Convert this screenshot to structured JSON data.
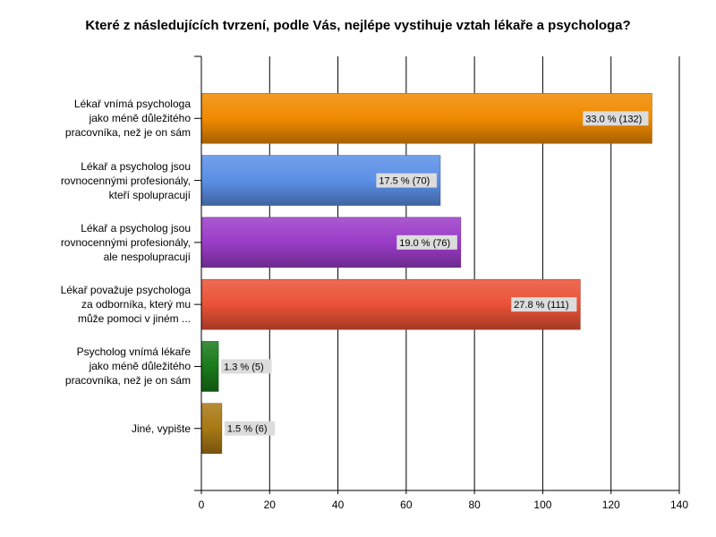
{
  "chart_data": {
    "type": "bar",
    "orientation": "horizontal",
    "title": "Které z následujících tvrzení, podle Vás, nejlépe vystihuje vztah lékaře a psychologa?",
    "categories": [
      [
        "Lékař vnímá psychologa",
        "jako méně důležitého",
        "pracovníka, než je on sám"
      ],
      [
        "Lékař a psycholog jsou",
        "rovnocennými profesionály,",
        "kteří spolupracují"
      ],
      [
        "Lékař a psycholog jsou",
        "rovnocennými profesionály,",
        "ale nespolupracují"
      ],
      [
        "Lékař považuje psychologa",
        "za odborníka, který mu",
        "může pomoci v jiném ..."
      ],
      [
        "Psycholog vnímá lékaře",
        "jako méně důležitého",
        "pracovníka, než je on sám"
      ],
      [
        "Jiné, vypište"
      ]
    ],
    "values": [
      132,
      70,
      76,
      111,
      5,
      6
    ],
    "data_labels": [
      "33.0 % (132)",
      "17.5 % (70)",
      "19.0 % (76)",
      "27.8 % (111)",
      "1.3 % (5)",
      "1.5 % (6)"
    ],
    "colors": [
      "#f08a00",
      "#5b8fe6",
      "#9b3cc8",
      "#ea5236",
      "#1a7a1a",
      "#a87814"
    ],
    "xlim": [
      0,
      140
    ],
    "xticks": [
      0,
      20,
      40,
      60,
      80,
      100,
      120,
      140
    ],
    "grid": true,
    "xlabel": "",
    "ylabel": ""
  }
}
